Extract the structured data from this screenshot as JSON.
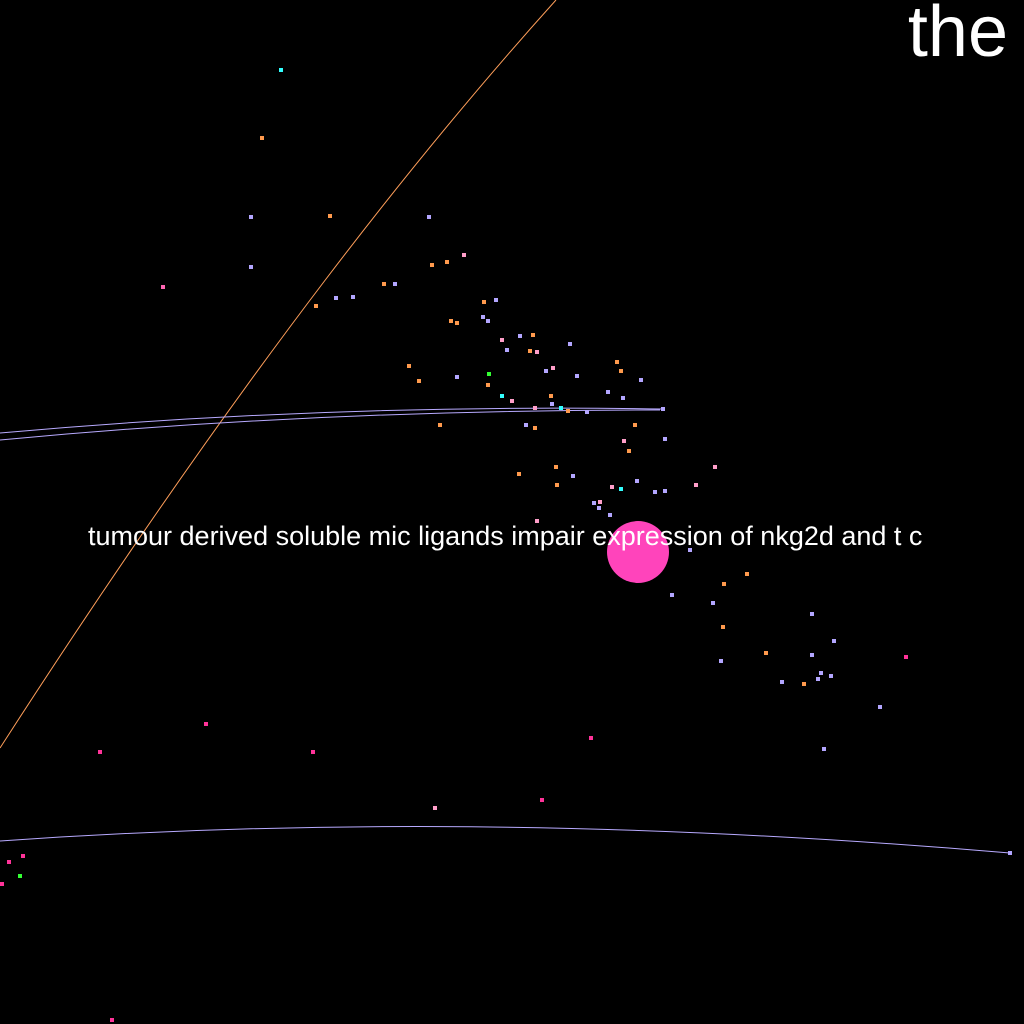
{
  "corner_text": "the",
  "hover_label": "tumour derived soluble mic ligands impair expression of nkg2d and t c",
  "colors": {
    "background": "#000000",
    "lavender": "#b3a6ff",
    "orange": "#ff9a4d",
    "pink": "#ff66b3",
    "light_pink": "#ff9ec9",
    "magenta": "#ff3399",
    "cyan": "#33ffff",
    "green": "#33ff33",
    "highlight": "#ff44bb",
    "curve_orange": "#ff9f5a",
    "curve_lavender": "#b8aaff",
    "label": "#ffffff"
  }
}
